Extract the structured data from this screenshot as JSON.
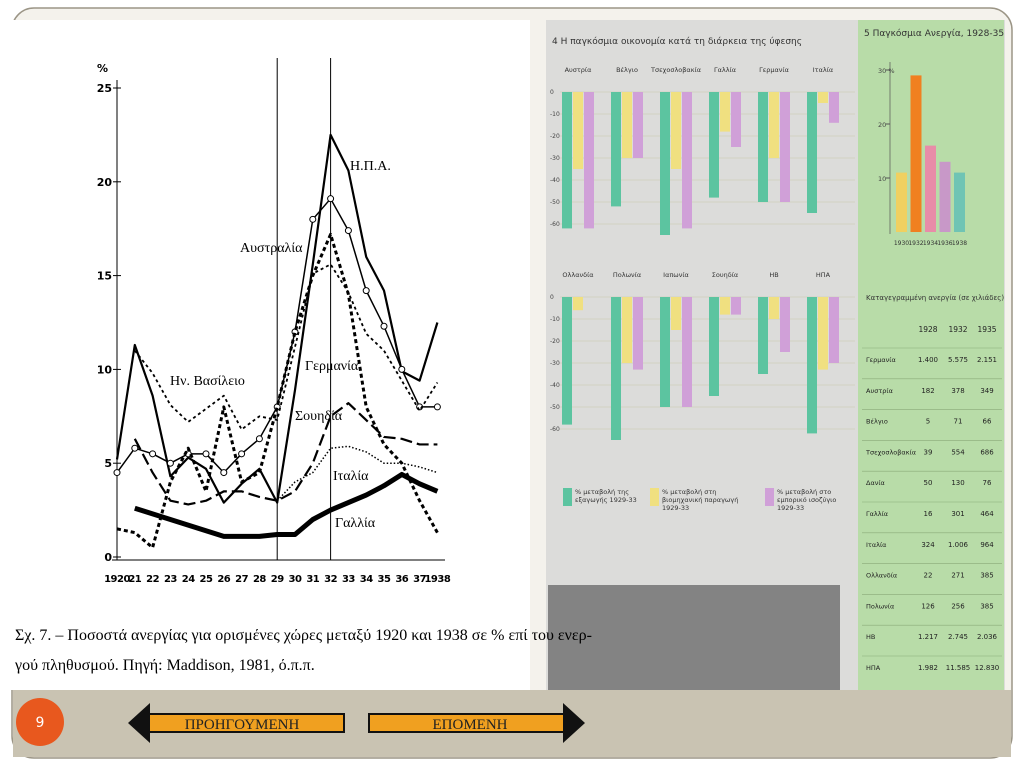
{
  "slide_number": 9,
  "navigation": {
    "previous": "ΠΡΟΗΓΟΥΜΕΝΗ",
    "next": "ΕΠΟΜΕΝΗ"
  },
  "caption": [
    "Σχ. 7. – Ποσοστά ανεργίας για ορισμένες χώρες μεταξύ 1920 και 1938 σε % επί του ενερ-",
    "γού πληθυσμού. Πηγή: Maddison, 1981, ό.π.π."
  ],
  "chart_data": [
    {
      "type": "line",
      "y_unit": "%",
      "categories": [
        "1920",
        "21",
        "22",
        "23",
        "24",
        "25",
        "26",
        "27",
        "28",
        "29",
        "30",
        "31",
        "32",
        "33",
        "34",
        "35",
        "36",
        "37",
        "1938"
      ],
      "ylim": [
        0,
        25
      ],
      "yticks": [
        0,
        5,
        10,
        15,
        20,
        25
      ],
      "series": [
        {
          "name": "Η.Π.Α.",
          "color": "#000",
          "values": [
            5.2,
            11.3,
            8.6,
            4.3,
            5.3,
            4.7,
            2.9,
            3.9,
            4.7,
            2.9,
            8.9,
            15.6,
            22.5,
            20.6,
            16.0,
            14.2,
            9.9,
            9.4,
            12.5
          ]
        },
        {
          "name": "Αυστραλία",
          "color": "#000",
          "values": [
            4.5,
            5.8,
            5.5,
            5.0,
            5.5,
            5.5,
            4.5,
            5.5,
            6.3,
            8.0,
            12.0,
            18.0,
            19.1,
            17.4,
            14.2,
            12.3,
            10.0,
            8.0,
            8.0
          ]
        },
        {
          "name": "Ην. Βασίλειο",
          "color": "#000",
          "values": [
            null,
            11.0,
            9.8,
            8.1,
            7.2,
            7.9,
            8.6,
            6.8,
            7.5,
            7.3,
            11.2,
            15.1,
            15.6,
            14.1,
            11.9,
            11.0,
            9.4,
            7.8,
            9.3
          ]
        },
        {
          "name": "Γερμανία",
          "color": "#000",
          "values": [
            1.5,
            1.3,
            0.5,
            4.0,
            5.8,
            3.5,
            8.0,
            4.0,
            4.5,
            8.0,
            12.0,
            15.0,
            17.2,
            14.0,
            8.0,
            6.0,
            5.0,
            3.0,
            1.3
          ]
        },
        {
          "name": "Σουηδία",
          "color": "#000",
          "values": [
            null,
            6.3,
            4.5,
            3.0,
            2.8,
            3.0,
            3.5,
            3.5,
            3.2,
            3.0,
            3.5,
            5.0,
            7.5,
            8.2,
            7.3,
            6.4,
            6.3,
            6.0,
            6.0
          ]
        },
        {
          "name": "Ιταλία",
          "color": "#000",
          "values": [
            null,
            null,
            null,
            null,
            null,
            null,
            null,
            null,
            null,
            3.0,
            4.0,
            4.5,
            5.8,
            5.9,
            5.6,
            5.0,
            5.0,
            4.8,
            4.5
          ]
        },
        {
          "name": "Γαλλία",
          "color": "#000",
          "values": [
            null,
            2.6,
            2.3,
            2.0,
            1.7,
            1.4,
            1.1,
            1.1,
            1.1,
            1.2,
            1.2,
            2.0,
            2.5,
            2.9,
            3.3,
            3.8,
            4.4,
            3.9,
            3.5
          ]
        }
      ]
    },
    {
      "type": "bar",
      "title": "4  Η παγκόσμια οικονομία κατά τη διάρκεια της ύφεσης",
      "categories": [
        "Αυστρία",
        "Βέλγιο",
        "Τσεχοσλοβακία",
        "Γαλλία",
        "Γερμανία",
        "Ιταλία",
        "Ολλανδία",
        "Πολωνία",
        "Ιαπωνία",
        "Σουηδία",
        "ΗΒ",
        "ΗΠΑ"
      ],
      "ylim": [
        -65,
        0
      ],
      "yticks": [
        0,
        -10,
        -20,
        -30,
        -40,
        -50,
        -60
      ],
      "series": [
        {
          "name": "% μεταβολή της εξαγωγής 1929-33",
          "color": "#5cc4a0",
          "values": [
            -62,
            -52,
            -65,
            -48,
            -50,
            -55,
            -58,
            -65,
            -50,
            -45,
            -35,
            -62
          ]
        },
        {
          "name": "% μεταβολή στη βιομηχανική παραγωγή 1929-33",
          "color": "#f0e080",
          "values": [
            -35,
            -30,
            -35,
            -18,
            -30,
            -5,
            -6,
            -30,
            -15,
            -8,
            -10,
            -33
          ]
        },
        {
          "name": "% μεταβολή στο εμπορικό ισοζύγιο 1929-33",
          "color": "#d0a0d8",
          "values": [
            -62,
            -30,
            -62,
            -25,
            -50,
            -14,
            null,
            -33,
            -50,
            -8,
            -25,
            -30
          ]
        }
      ]
    },
    {
      "type": "bar",
      "title": "5  Παγκόσμια Ανεργία, 1928-35",
      "categories": [
        "1930",
        "1932",
        "1934",
        "1936",
        "1938"
      ],
      "values": [
        11,
        29,
        16,
        13,
        11
      ],
      "colors": [
        "#f0d060",
        "#f08020",
        "#e88ca8",
        "#c898c8",
        "#70c4b4"
      ],
      "ylim": [
        0,
        30
      ],
      "yticks": [
        10,
        20,
        {
          "value": 30,
          "label": "30 %"
        }
      ]
    }
  ],
  "table": {
    "title": "Καταγεγραμμένη ανεργία (σε χιλιάδες)",
    "header": [
      "1928",
      "1932",
      "1935"
    ],
    "rows": [
      [
        "Γερμανία",
        "1.400",
        "5.575",
        "2.151"
      ],
      [
        "Αυστρία",
        "182",
        "378",
        "349"
      ],
      [
        "Βέλγιο",
        "5",
        "71",
        "66"
      ],
      [
        "Τσεχοσλοβακία",
        "39",
        "554",
        "686"
      ],
      [
        "Δανία",
        "50",
        "130",
        "76"
      ],
      [
        "Γαλλία",
        "16",
        "301",
        "464"
      ],
      [
        "Ιταλία",
        "324",
        "1.006",
        "964"
      ],
      [
        "Ολλανδία",
        "22",
        "271",
        "385"
      ],
      [
        "Πολωνία",
        "126",
        "256",
        "385"
      ],
      [
        "ΗΒ",
        "1.217",
        "2.745",
        "2.036"
      ],
      [
        "ΗΠΑ",
        "1.982",
        "11.585",
        "12.830"
      ]
    ]
  }
}
